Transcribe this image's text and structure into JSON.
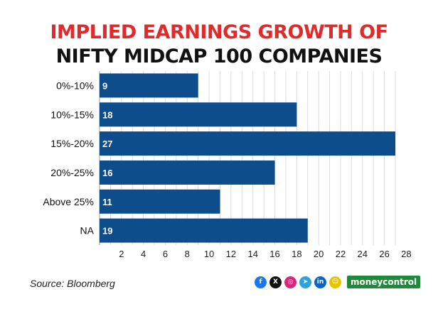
{
  "header": {
    "title_line1": "IMPLIED EARNINGS GROWTH OF",
    "title_line2": "NIFTY MIDCAP 100 COMPANIES"
  },
  "footer": {
    "source": "Source: Bloomberg",
    "brand": "moneycontrol",
    "social_icons": [
      {
        "name": "facebook-icon",
        "glyph": "f",
        "color": "#1877f2"
      },
      {
        "name": "x-icon",
        "glyph": "X",
        "color": "#111111"
      },
      {
        "name": "instagram-icon",
        "glyph": "◎",
        "color": "#d6287a"
      },
      {
        "name": "telegram-icon",
        "glyph": "➤",
        "color": "#2aa3de"
      },
      {
        "name": "linkedin-icon",
        "glyph": "in",
        "color": "#0a66c2"
      },
      {
        "name": "snapchat-icon",
        "glyph": "☺",
        "color": "#e8c400"
      }
    ]
  },
  "colors": {
    "bar": "#0d4d8c",
    "grid": "#dddddd",
    "title_red": "#e12a2a"
  },
  "chart_data": {
    "type": "bar",
    "orientation": "horizontal",
    "title": "IMPLIED EARNINGS GROWTH OF NIFTY MIDCAP 100 COMPANIES",
    "categories": [
      "0%-10%",
      "10%-15%",
      "15%-20%",
      "20%-25%",
      "Above 25%",
      "NA"
    ],
    "values": [
      9,
      18,
      27,
      16,
      11,
      19
    ],
    "xlim": [
      0,
      28
    ],
    "xticks": [
      2,
      4,
      6,
      8,
      10,
      12,
      14,
      16,
      18,
      20,
      22,
      24,
      26,
      28
    ],
    "xlabel": "",
    "ylabel": "",
    "grid": true,
    "data_labels": true
  }
}
